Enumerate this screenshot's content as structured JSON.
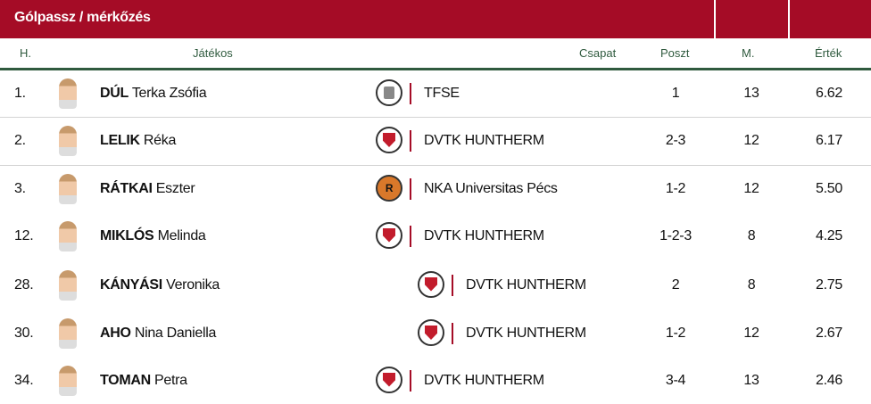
{
  "title": "Gólpassz / mérkőzés",
  "headers": {
    "rank": "H.",
    "player": "Játékos",
    "team": "Csapat",
    "position": "Poszt",
    "matches": "M.",
    "value": "Érték"
  },
  "colors": {
    "header_red": "#a50c26",
    "header_green": "#2f5a3e"
  },
  "rows": [
    {
      "rank": "1.",
      "surname": "DÚL",
      "given": "Terka Zsófia",
      "team": "TFSE",
      "team_logo": "tfse-logo",
      "position": "1",
      "matches": "13",
      "value": "6.62"
    },
    {
      "rank": "2.",
      "surname": "LELIK",
      "given": "Réka",
      "team": "DVTK HUNTHERM",
      "team_logo": "dvtk-logo",
      "position": "2-3",
      "matches": "12",
      "value": "6.17"
    },
    {
      "rank": "3.",
      "surname": "RÁTKAI",
      "given": "Eszter",
      "team": "NKA Universitas Pécs",
      "team_logo": "pecs-logo",
      "position": "1-2",
      "matches": "12",
      "value": "5.50"
    },
    {
      "rank": "12.",
      "surname": "MIKLÓS",
      "given": "Melinda",
      "team": "DVTK HUNTHERM",
      "team_logo": "dvtk-logo",
      "position": "1-2-3",
      "matches": "8",
      "value": "4.25"
    },
    {
      "rank": "28.",
      "surname": "KÁNYÁSI",
      "given": "Veronika",
      "team": "DVTK HUNTHERM",
      "team_logo": "dvtk-logo",
      "position": "2",
      "matches": "8",
      "value": "2.75"
    },
    {
      "rank": "30.",
      "surname": "AHO",
      "given": "Nina Daniella",
      "team": "DVTK HUNTHERM",
      "team_logo": "dvtk-logo",
      "position": "1-2",
      "matches": "12",
      "value": "2.67"
    },
    {
      "rank": "34.",
      "surname": "TOMAN",
      "given": "Petra",
      "team": "DVTK HUNTHERM",
      "team_logo": "dvtk-logo",
      "position": "3-4",
      "matches": "13",
      "value": "2.46"
    }
  ]
}
